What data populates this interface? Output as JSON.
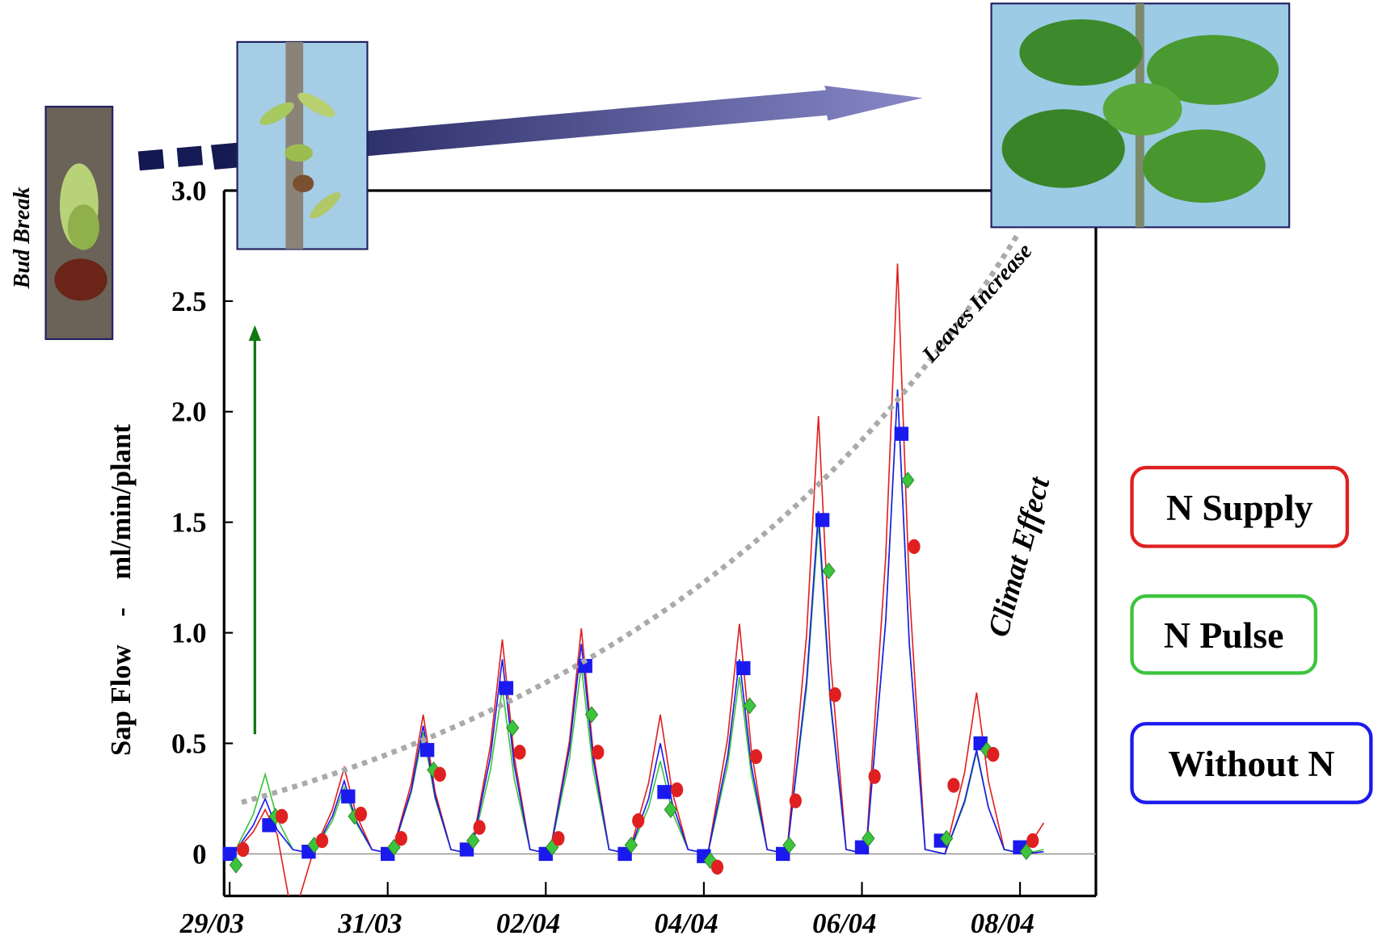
{
  "chart_data": {
    "type": "line",
    "annotations": {
      "bud_break": "Bud Break",
      "leaves_increase": "Leaves Increase",
      "climat_effect": "Climat Effect"
    },
    "y_label": "Sap Flow    -    ml/min/plant",
    "xlim": [
      -0.07,
      10.96
    ],
    "ylim": [
      -0.19,
      3.0
    ],
    "xticks": [
      {
        "value": 0,
        "label": "29/03"
      },
      {
        "value": 2,
        "label": "31/03"
      },
      {
        "value": 4,
        "label": "02/04"
      },
      {
        "value": 6,
        "label": "04/04"
      },
      {
        "value": 8,
        "label": "06/04"
      },
      {
        "value": 10,
        "label": "08/04"
      }
    ],
    "yticks": [
      0,
      0.5,
      {
        "value": 1,
        "label": "1.0"
      },
      1.5,
      {
        "value": 2,
        "label": "2.0"
      },
      2.5,
      {
        "value": 3,
        "label": "3.0"
      }
    ],
    "line_x": [
      0.05,
      0.3,
      0.45,
      0.6,
      0.8,
      1.05,
      1.3,
      1.45,
      1.6,
      1.8,
      2.05,
      2.3,
      2.45,
      2.6,
      2.8,
      3.05,
      3.3,
      3.45,
      3.6,
      3.8,
      4.05,
      4.3,
      4.45,
      4.6,
      4.8,
      5.05,
      5.3,
      5.45,
      5.6,
      5.8,
      6.05,
      6.3,
      6.45,
      6.6,
      6.8,
      7.05,
      7.3,
      7.45,
      7.6,
      7.8,
      8.05,
      8.3,
      8.45,
      8.6,
      8.8,
      9.05,
      9.3,
      9.45,
      9.6,
      9.8,
      10.05,
      10.3
    ],
    "series": [
      {
        "name": "N Supply",
        "color": "#e02020",
        "marker": "circle",
        "x": [
          0.17,
          0.66,
          1.17,
          1.66,
          2.17,
          2.66,
          3.16,
          3.67,
          4.16,
          4.66,
          5.17,
          5.66,
          6.17,
          6.66,
          7.16,
          7.66,
          8.16,
          8.66,
          9.16,
          9.66,
          10.16
        ],
        "values": [
          0.02,
          0.17,
          0.06,
          0.18,
          0.07,
          0.36,
          0.12,
          0.46,
          0.07,
          0.46,
          0.15,
          0.29,
          -0.06,
          0.44,
          0.24,
          0.72,
          0.35,
          1.39,
          0.31,
          0.45,
          0.06
        ],
        "line_values": [
          0,
          0.1,
          0.2,
          0.09,
          -0.3,
          0,
          0.2,
          0.39,
          0.18,
          0.02,
          0,
          0.32,
          0.63,
          0.28,
          0.02,
          0,
          0.49,
          0.97,
          0.44,
          0.02,
          0,
          0.51,
          1.02,
          0.46,
          0.02,
          0,
          0.32,
          0.63,
          0.28,
          0.02,
          0,
          0.52,
          1.04,
          0.47,
          0.02,
          0,
          0.99,
          1.98,
          0.89,
          0.02,
          0,
          1.34,
          2.67,
          1.2,
          0.02,
          0,
          0.37,
          0.73,
          0.33,
          0.02,
          0,
          0.14
        ]
      },
      {
        "name": "N Pulse",
        "color": "#3cc43c",
        "marker": "diamond",
        "x": [
          0.08,
          0.58,
          1.07,
          1.58,
          2.08,
          2.58,
          3.08,
          3.58,
          4.08,
          4.58,
          5.08,
          5.58,
          6.08,
          6.58,
          7.08,
          7.58,
          8.08,
          8.58,
          9.07,
          9.58,
          10.08
        ],
        "values": [
          -0.05,
          0.17,
          0.04,
          0.17,
          0.03,
          0.38,
          0.06,
          0.57,
          0.03,
          0.63,
          0.04,
          0.2,
          -0.03,
          0.67,
          0.04,
          1.28,
          0.07,
          1.69,
          0.07,
          0.47,
          0.01
        ],
        "line_values": [
          0,
          0.18,
          0.36,
          0.16,
          0.02,
          0,
          0.15,
          0.3,
          0.14,
          0.02,
          0,
          0.28,
          0.55,
          0.25,
          0.02,
          0,
          0.38,
          0.75,
          0.34,
          0.02,
          0,
          0.43,
          0.85,
          0.38,
          0.02,
          0,
          0.21,
          0.42,
          0.19,
          0.02,
          0,
          0.4,
          0.8,
          0.36,
          0.02,
          0,
          0.75,
          1.5,
          0.68,
          0.02,
          0,
          1.05,
          2.1,
          0.95,
          0.02,
          0,
          0.23,
          0.46,
          0.21,
          0.02,
          0,
          0.02
        ]
      },
      {
        "name": "Without N",
        "color": "#1a1aee",
        "marker": "square",
        "x": [
          0,
          0.5,
          1,
          1.5,
          2,
          2.5,
          3,
          3.5,
          4,
          4.5,
          5,
          5.5,
          6,
          6.5,
          7,
          7.5,
          8,
          8.5,
          9,
          9.5,
          10
        ],
        "values": [
          0,
          0.13,
          0.01,
          0.26,
          0,
          0.47,
          0.02,
          0.75,
          0,
          0.85,
          0,
          0.28,
          -0.01,
          0.84,
          0,
          1.51,
          0.03,
          1.9,
          0.06,
          0.5,
          0.03
        ],
        "line_values": [
          0,
          0.13,
          0.25,
          0.11,
          0.02,
          0,
          0.17,
          0.33,
          0.15,
          0.02,
          0,
          0.29,
          0.58,
          0.26,
          0.02,
          0,
          0.44,
          0.88,
          0.4,
          0.02,
          0,
          0.48,
          0.95,
          0.43,
          0.02,
          0,
          0.25,
          0.5,
          0.23,
          0.02,
          0,
          0.44,
          0.88,
          0.4,
          0.02,
          0,
          0.78,
          1.55,
          0.7,
          0.02,
          0,
          1.05,
          2.1,
          0.95,
          0.02,
          0,
          0.24,
          0.47,
          0.21,
          0.02,
          0,
          0.01
        ]
      }
    ]
  }
}
